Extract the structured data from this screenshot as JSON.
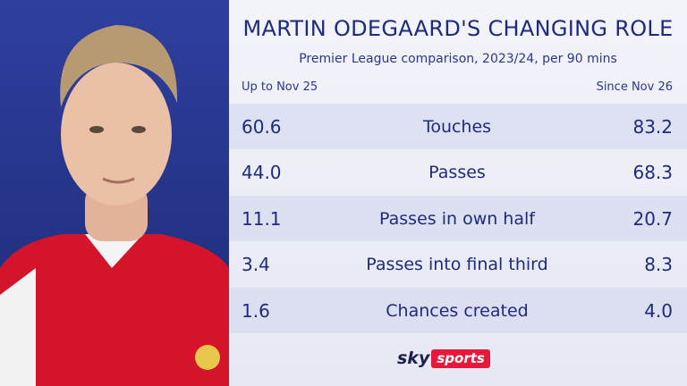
{
  "header": {
    "title": "MARTIN ODEGAARD'S CHANGING ROLE",
    "subtitle": "Premier League comparison, 2023/24, per 90 mins"
  },
  "table": {
    "columns": [
      "Up to Nov 25",
      "Since Nov 26"
    ],
    "rows": [
      [
        "60.6",
        "Touches",
        "83.2"
      ],
      [
        "44.0",
        "Passes",
        "68.3"
      ],
      [
        "11.1",
        "Passes in own half",
        "20.7"
      ],
      [
        "3.4",
        "Passes into final third",
        "8.3"
      ],
      [
        "1.6",
        "Chances created",
        "4.0"
      ]
    ]
  },
  "logo": {
    "brand": "sky",
    "product": "sports"
  }
}
